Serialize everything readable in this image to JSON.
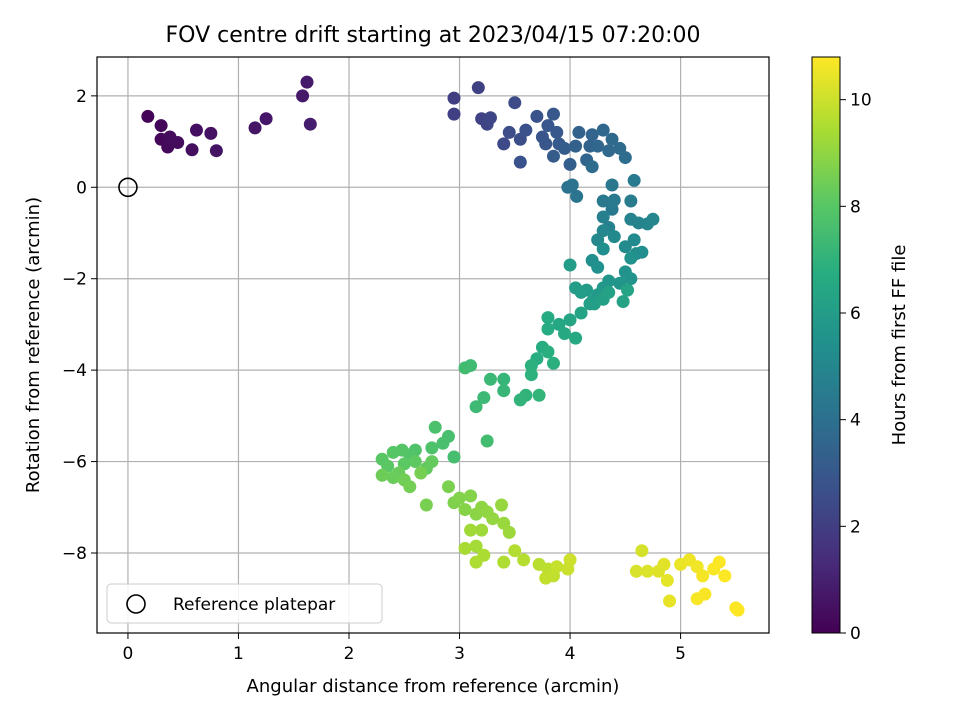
{
  "chart_data": {
    "type": "scatter",
    "title": "FOV centre drift starting at 2023/04/15 07:20:00",
    "xlabel": "Angular distance from reference (arcmin)",
    "ylabel": "Rotation from reference (arcmin)",
    "xlim": [
      -0.28,
      5.8
    ],
    "ylim": [
      -9.75,
      2.85
    ],
    "xticks": [
      "0",
      "1",
      "2",
      "3",
      "4",
      "5"
    ],
    "yticks": [
      "−8",
      "−6",
      "−4",
      "−2",
      "0",
      "2"
    ],
    "grid": true,
    "legend": {
      "placement": "lower-left",
      "entries": [
        "Reference platepar"
      ]
    },
    "colorbar": {
      "label": "Hours from first FF file",
      "colormap": "viridis",
      "range": [
        0,
        10.8
      ],
      "ticks": [
        "0",
        "2",
        "4",
        "6",
        "8",
        "10"
      ]
    },
    "reference_point": {
      "x": 0,
      "y": 0,
      "label": "Reference platepar"
    },
    "points": [
      [
        0.18,
        1.55,
        0.1
      ],
      [
        0.3,
        1.35,
        0.15
      ],
      [
        0.3,
        1.05,
        0.2
      ],
      [
        0.36,
        0.88,
        0.25
      ],
      [
        0.38,
        1.1,
        0.3
      ],
      [
        0.45,
        0.98,
        0.35
      ],
      [
        0.58,
        0.82,
        0.4
      ],
      [
        0.62,
        1.25,
        0.45
      ],
      [
        0.75,
        1.18,
        0.5
      ],
      [
        0.8,
        0.8,
        0.55
      ],
      [
        1.15,
        1.3,
        0.65
      ],
      [
        1.25,
        1.5,
        0.7
      ],
      [
        1.58,
        2.0,
        0.75
      ],
      [
        1.62,
        2.3,
        0.8
      ],
      [
        1.65,
        1.38,
        0.85
      ],
      [
        2.95,
        1.95,
        2.0
      ],
      [
        2.95,
        1.6,
        2.05
      ],
      [
        3.17,
        2.18,
        2.1
      ],
      [
        3.2,
        1.5,
        2.2
      ],
      [
        3.25,
        1.38,
        2.25
      ],
      [
        3.28,
        1.52,
        2.3
      ],
      [
        3.4,
        0.95,
        2.4
      ],
      [
        3.5,
        1.85,
        2.5
      ],
      [
        3.45,
        1.2,
        2.55
      ],
      [
        3.55,
        1.05,
        2.6
      ],
      [
        3.6,
        1.25,
        2.7
      ],
      [
        3.55,
        0.55,
        2.75
      ],
      [
        3.7,
        1.55,
        2.8
      ],
      [
        3.75,
        1.1,
        2.85
      ],
      [
        3.78,
        0.95,
        2.9
      ],
      [
        3.8,
        1.35,
        2.95
      ],
      [
        3.85,
        1.6,
        3.0
      ],
      [
        3.88,
        1.2,
        3.05
      ],
      [
        3.9,
        0.95,
        3.1
      ],
      [
        3.85,
        0.68,
        3.15
      ],
      [
        3.95,
        0.85,
        3.2
      ],
      [
        4.0,
        0.5,
        3.3
      ],
      [
        4.05,
        0.9,
        3.35
      ],
      [
        4.08,
        1.2,
        3.4
      ],
      [
        4.18,
        0.9,
        3.45
      ],
      [
        4.2,
        1.15,
        3.5
      ],
      [
        4.15,
        0.6,
        3.55
      ],
      [
        4.25,
        0.9,
        3.6
      ],
      [
        4.3,
        1.25,
        3.65
      ],
      [
        4.35,
        0.8,
        3.7
      ],
      [
        4.38,
        1.05,
        3.75
      ],
      [
        4.45,
        0.85,
        3.8
      ],
      [
        4.2,
        0.45,
        3.85
      ],
      [
        4.5,
        0.65,
        3.9
      ],
      [
        3.98,
        0.0,
        4.1
      ],
      [
        4.02,
        0.05,
        4.15
      ],
      [
        4.06,
        -0.2,
        4.2
      ],
      [
        4.38,
        0.05,
        4.3
      ],
      [
        4.3,
        -0.3,
        4.35
      ],
      [
        4.38,
        -0.48,
        4.4
      ],
      [
        4.4,
        -0.28,
        4.45
      ],
      [
        4.58,
        0.15,
        4.5
      ],
      [
        4.55,
        -0.3,
        4.55
      ],
      [
        4.3,
        -0.65,
        4.7
      ],
      [
        4.35,
        -0.88,
        4.75
      ],
      [
        4.55,
        -0.7,
        4.8
      ],
      [
        4.62,
        -0.78,
        4.85
      ],
      [
        4.7,
        -0.8,
        4.9
      ],
      [
        4.75,
        -0.7,
        4.95
      ],
      [
        4.3,
        -0.95,
        5.0
      ],
      [
        4.25,
        -1.15,
        5.05
      ],
      [
        4.4,
        -1.08,
        5.1
      ],
      [
        4.5,
        -1.3,
        5.15
      ],
      [
        4.58,
        -1.15,
        5.2
      ],
      [
        4.6,
        -1.45,
        5.25
      ],
      [
        4.65,
        -1.42,
        5.3
      ],
      [
        4.3,
        -1.35,
        5.35
      ],
      [
        4.2,
        -1.6,
        5.4
      ],
      [
        4.25,
        -1.75,
        5.45
      ],
      [
        4.55,
        -1.55,
        5.5
      ],
      [
        4.5,
        -1.85,
        5.55
      ],
      [
        4.55,
        -2.0,
        5.6
      ],
      [
        4.45,
        -2.1,
        5.65
      ],
      [
        4.35,
        -2.05,
        5.7
      ],
      [
        4.3,
        -2.2,
        5.75
      ],
      [
        4.25,
        -2.35,
        5.8
      ],
      [
        4.2,
        -2.5,
        5.85
      ],
      [
        4.15,
        -2.25,
        5.9
      ],
      [
        4.05,
        -2.2,
        5.95
      ],
      [
        4.0,
        -1.7,
        5.95
      ],
      [
        4.1,
        -2.3,
        6.0
      ],
      [
        4.18,
        -2.55,
        6.05
      ],
      [
        4.22,
        -2.55,
        6.1
      ],
      [
        4.3,
        -2.45,
        6.15
      ],
      [
        4.35,
        -2.3,
        6.2
      ],
      [
        4.48,
        -2.5,
        6.25
      ],
      [
        4.52,
        -2.25,
        6.3
      ],
      [
        4.1,
        -2.75,
        6.35
      ],
      [
        4.0,
        -2.9,
        6.4
      ],
      [
        3.9,
        -3.0,
        6.45
      ],
      [
        3.95,
        -3.2,
        6.5
      ],
      [
        4.05,
        -3.3,
        6.55
      ],
      [
        3.8,
        -2.85,
        6.6
      ],
      [
        3.8,
        -3.1,
        6.65
      ],
      [
        3.75,
        -3.5,
        6.7
      ],
      [
        3.7,
        -3.75,
        6.75
      ],
      [
        3.8,
        -3.6,
        6.8
      ],
      [
        3.85,
        -3.85,
        6.85
      ],
      [
        3.65,
        -3.9,
        6.9
      ],
      [
        3.65,
        -4.1,
        6.95
      ],
      [
        3.6,
        -4.55,
        7.0
      ],
      [
        3.55,
        -4.65,
        7.05
      ],
      [
        3.72,
        -4.55,
        7.1
      ],
      [
        3.4,
        -4.2,
        7.15
      ],
      [
        3.4,
        -4.45,
        7.2
      ],
      [
        3.28,
        -4.2,
        7.25
      ],
      [
        3.22,
        -4.6,
        7.3
      ],
      [
        3.15,
        -4.8,
        7.35
      ],
      [
        3.1,
        -3.9,
        7.4
      ],
      [
        3.05,
        -3.95,
        7.45
      ],
      [
        3.25,
        -5.55,
        7.5
      ],
      [
        2.95,
        -5.9,
        7.55
      ],
      [
        2.9,
        -5.45,
        7.6
      ],
      [
        2.85,
        -5.6,
        7.65
      ],
      [
        2.78,
        -5.25,
        7.7
      ],
      [
        2.75,
        -5.7,
        7.75
      ],
      [
        2.6,
        -5.75,
        7.8
      ],
      [
        2.55,
        -5.85,
        7.85
      ],
      [
        2.48,
        -5.75,
        7.9
      ],
      [
        2.4,
        -5.8,
        7.95
      ],
      [
        2.3,
        -5.95,
        8.0
      ],
      [
        2.35,
        -6.1,
        8.05
      ],
      [
        2.5,
        -6.05,
        8.1
      ],
      [
        2.6,
        -6.0,
        8.15
      ],
      [
        2.7,
        -6.15,
        8.2
      ],
      [
        2.75,
        -6.0,
        8.25
      ],
      [
        2.45,
        -6.25,
        8.3
      ],
      [
        2.4,
        -6.35,
        8.35
      ],
      [
        2.3,
        -6.3,
        8.4
      ],
      [
        2.5,
        -6.4,
        8.45
      ],
      [
        2.55,
        -6.55,
        8.5
      ],
      [
        2.65,
        -6.25,
        8.55
      ],
      [
        2.7,
        -6.95,
        8.6
      ],
      [
        2.9,
        -6.55,
        8.65
      ],
      [
        2.95,
        -6.9,
        8.7
      ],
      [
        3.0,
        -6.8,
        8.75
      ],
      [
        3.1,
        -6.75,
        8.8
      ],
      [
        3.05,
        -7.05,
        8.85
      ],
      [
        3.15,
        -7.15,
        8.9
      ],
      [
        3.2,
        -7.0,
        8.95
      ],
      [
        3.25,
        -7.1,
        9.0
      ],
      [
        3.3,
        -7.25,
        9.05
      ],
      [
        3.38,
        -6.95,
        9.1
      ],
      [
        3.4,
        -7.35,
        9.15
      ],
      [
        3.45,
        -7.55,
        9.2
      ],
      [
        3.2,
        -7.5,
        9.25
      ],
      [
        3.1,
        -7.5,
        9.3
      ],
      [
        3.15,
        -7.85,
        9.35
      ],
      [
        3.05,
        -7.9,
        9.4
      ],
      [
        3.22,
        -8.05,
        9.45
      ],
      [
        3.15,
        -8.2,
        9.5
      ],
      [
        3.4,
        -8.2,
        9.55
      ],
      [
        3.5,
        -7.95,
        9.6
      ],
      [
        3.58,
        -8.15,
        9.65
      ],
      [
        3.72,
        -8.25,
        9.7
      ],
      [
        3.8,
        -8.35,
        9.75
      ],
      [
        3.85,
        -8.5,
        9.8
      ],
      [
        3.78,
        -8.55,
        9.85
      ],
      [
        3.88,
        -8.3,
        9.9
      ],
      [
        3.98,
        -8.35,
        9.95
      ],
      [
        4.0,
        -8.15,
        10.0
      ],
      [
        4.65,
        -7.95,
        10.15
      ],
      [
        4.6,
        -8.4,
        10.2
      ],
      [
        4.7,
        -8.4,
        10.25
      ],
      [
        4.8,
        -8.4,
        10.3
      ],
      [
        4.85,
        -8.25,
        10.35
      ],
      [
        4.88,
        -8.6,
        10.4
      ],
      [
        4.9,
        -9.05,
        10.45
      ],
      [
        5.0,
        -8.25,
        10.5
      ],
      [
        5.08,
        -8.15,
        10.55
      ],
      [
        5.15,
        -8.3,
        10.6
      ],
      [
        5.2,
        -8.5,
        10.65
      ],
      [
        5.15,
        -9.0,
        10.7
      ],
      [
        5.22,
        -8.9,
        10.72
      ],
      [
        5.3,
        -8.35,
        10.74
      ],
      [
        5.35,
        -8.2,
        10.76
      ],
      [
        5.4,
        -8.5,
        10.78
      ],
      [
        5.5,
        -9.2,
        10.8
      ],
      [
        5.52,
        -9.25,
        10.8
      ]
    ]
  }
}
